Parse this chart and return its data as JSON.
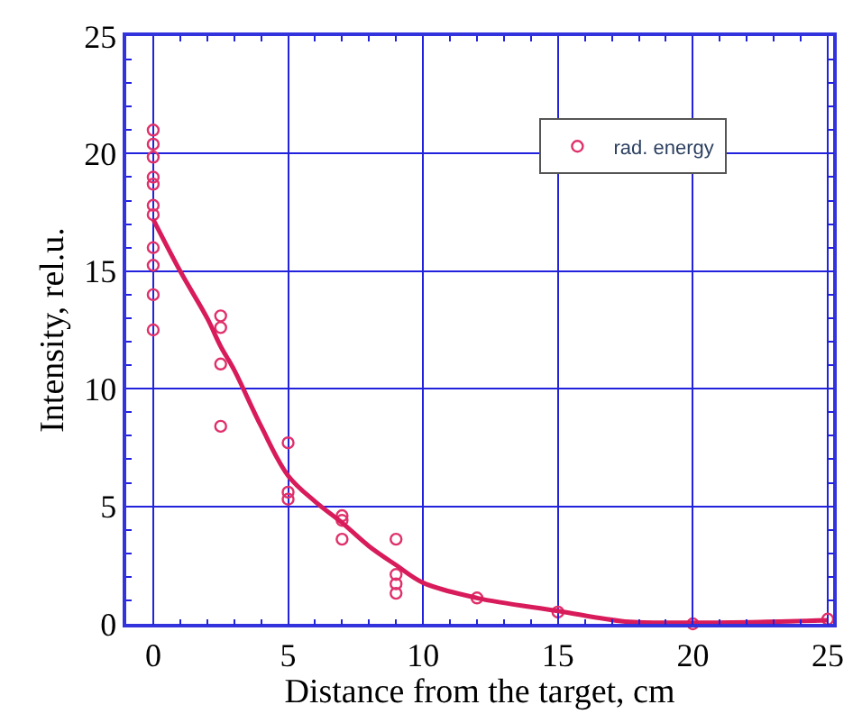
{
  "chart_data": {
    "type": "scatter",
    "xlabel": "Distance from the target, cm",
    "ylabel": "Intensity, rel.u.",
    "xlim": [
      -1,
      25.2
    ],
    "ylim": [
      0,
      25
    ],
    "xticks": [
      0,
      5,
      10,
      15,
      20,
      25
    ],
    "yticks": [
      0,
      5,
      10,
      15,
      20,
      25
    ],
    "grid": true,
    "legend": "top right",
    "marker": "circle",
    "series": [
      {
        "name": "rad. energy",
        "color": "#e0306a",
        "x": [
          0,
          0,
          0,
          0,
          0,
          0,
          0,
          0,
          0,
          0,
          0,
          2.5,
          2.5,
          2.5,
          2.5,
          5,
          5,
          5,
          7,
          7,
          7,
          9,
          9,
          9,
          9,
          12,
          15,
          20,
          25
        ],
        "values": [
          21.0,
          20.4,
          19.85,
          19.0,
          18.7,
          17.8,
          17.4,
          16.0,
          15.25,
          14.0,
          12.5,
          13.1,
          12.6,
          11.05,
          8.4,
          7.7,
          5.6,
          5.3,
          4.6,
          4.4,
          3.6,
          3.6,
          2.1,
          1.7,
          1.3,
          1.1,
          0.5,
          0,
          0.2
        ]
      },
      {
        "type": "line",
        "marker": "none",
        "color": "#d81b5a",
        "x": [
          0,
          1,
          2,
          2.5,
          3,
          4,
          5,
          6,
          7,
          8,
          9,
          10,
          12,
          15,
          17.5,
          20,
          22.5,
          25
        ],
        "values": [
          17.2,
          15.0,
          13.0,
          11.8,
          10.8,
          8.4,
          6.3,
          5.2,
          4.3,
          3.3,
          2.5,
          1.75,
          1.1,
          0.55,
          0.1,
          0.05,
          0.08,
          0.15
        ]
      }
    ]
  }
}
